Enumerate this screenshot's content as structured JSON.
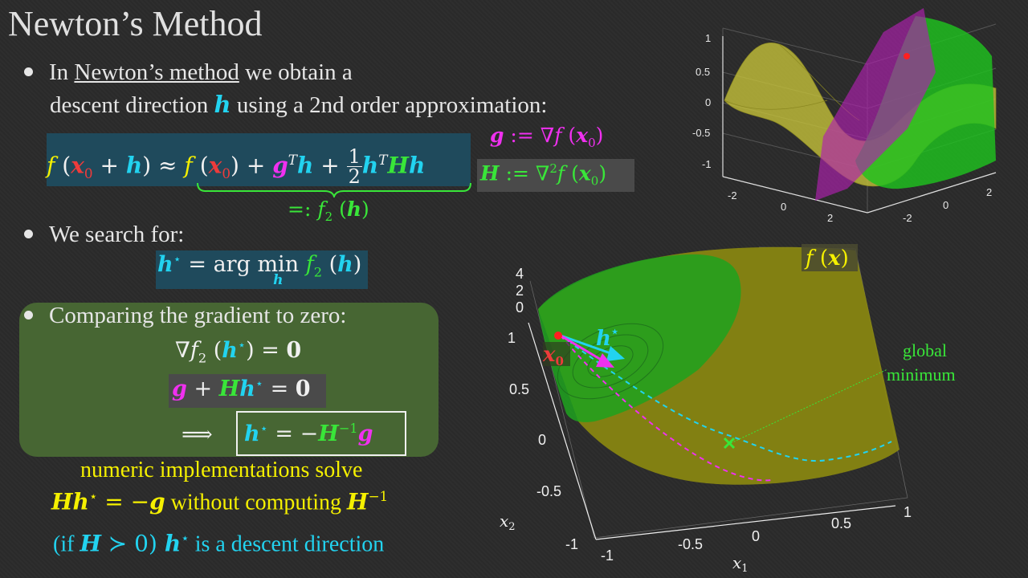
{
  "title": "Newton’s Method",
  "bullet1": {
    "pre": "In ",
    "link": "Newton’s method",
    "post": " we obtain a",
    "line2a": "descent direction ",
    "h": "h",
    "line2b": " using a 2nd order approximation:"
  },
  "eq1": {
    "f": "f",
    "lp": " (",
    "x0": "x",
    "sub0": "0",
    "plus": " + ",
    "h": "h",
    "rp": ")",
    "approx": " ≈ ",
    "f2": "f",
    "lp2": " (",
    "x02": "x",
    "sub02": "0",
    "rp2": ")",
    "plus2": " + ",
    "g": "g",
    "T": "T",
    "h2": "h",
    "plus3": " + ",
    "num": "1",
    "den": "2",
    "h3": "h",
    "T2": "T",
    "H": "H",
    "h4": "h"
  },
  "brace_label": {
    "defeq": "=: ",
    "f": "f",
    "sub": "2",
    "lp": " (",
    "h": "h",
    "rp": ")"
  },
  "gdef": {
    "g": "g",
    "defeq": " := ∇",
    "f": "f",
    "lp": " (",
    "x": "x",
    "sub": "0",
    "rp": ")"
  },
  "Hdef": {
    "H": "H",
    "defeq": " := ∇",
    "sup": "2",
    "f": "f",
    "lp": " (",
    "x": "x",
    "sub": "0",
    "rp": ")"
  },
  "bullet2": "We search for:",
  "argmin": {
    "h": "h",
    "star": "⋆",
    "eq": " = arg ",
    "min": "min",
    "under": "h",
    "f": "f",
    "sub": "2",
    "lp": " (",
    "h2": "h",
    "rp": ")"
  },
  "bullet3": "Comparing the gradient to zero:",
  "grad_eq": {
    "nabla": "∇",
    "f": "f",
    "sub": "2",
    "lp": " (",
    "h": "h",
    "star": "⋆",
    "rp": ")",
    "eq": " = ",
    "zero": "0"
  },
  "gh_eq": {
    "g": "g",
    "plus": " + ",
    "H": "H",
    "h": "h",
    "star": "⋆",
    "eq": " = ",
    "zero": "0"
  },
  "implies": {
    "arrow": "⟹",
    "h": "h",
    "star": "⋆",
    "eq": " = −",
    "H": "H",
    "inv": "−1",
    "g": "g"
  },
  "numeric": {
    "line1": "numeric implementations solve",
    "H": "H",
    "h": "h",
    "star": "⋆",
    "eq": " = −",
    "g": "g",
    "mid": " without computing ",
    "H2": "H",
    "inv": "−1"
  },
  "descent": {
    "lp": "(if ",
    "H": "H",
    "succ": " ≻ 0) ",
    "h": "h",
    "star": "⋆",
    "text": " is a descent direction"
  },
  "plot_top": {
    "z_ticks": [
      "1",
      "0.5",
      "0",
      "-0.5",
      "-1"
    ],
    "x_ticks": [
      "-2",
      "0",
      "2"
    ],
    "y_ticks": [
      "2",
      "0",
      "-2"
    ],
    "colors": {
      "surface": "#c8c43a",
      "quadratic": "#1fc21f",
      "plane": "#b020b0",
      "point": "#ff2020"
    }
  },
  "plot_main": {
    "fx_label": {
      "f": "f",
      "lp": " (",
      "x": "x",
      "rp": ")"
    },
    "z_ticks": [
      "4",
      "2",
      "0"
    ],
    "y_ticks": [
      "1",
      "0.5",
      "0",
      "-0.5"
    ],
    "x_ticks": [
      "-1",
      "-0.5",
      "0",
      "0.5",
      "1"
    ],
    "y_corner": "-1",
    "xlabel": {
      "x": "x",
      "sub": "1"
    },
    "ylabel": {
      "x": "x",
      "sub": "2"
    },
    "x0_label": {
      "x": "x",
      "sub": "0"
    },
    "hstar_label": {
      "h": "h",
      "star": "⋆"
    },
    "global_min": {
      "line1": "global",
      "line2": "minimum"
    },
    "colors": {
      "surface": "#8c8a10",
      "quadratic": "#1fa21f",
      "newton_path": "#22d3f0",
      "gradient_path": "#f030f0",
      "minimum": "#39e639"
    }
  }
}
